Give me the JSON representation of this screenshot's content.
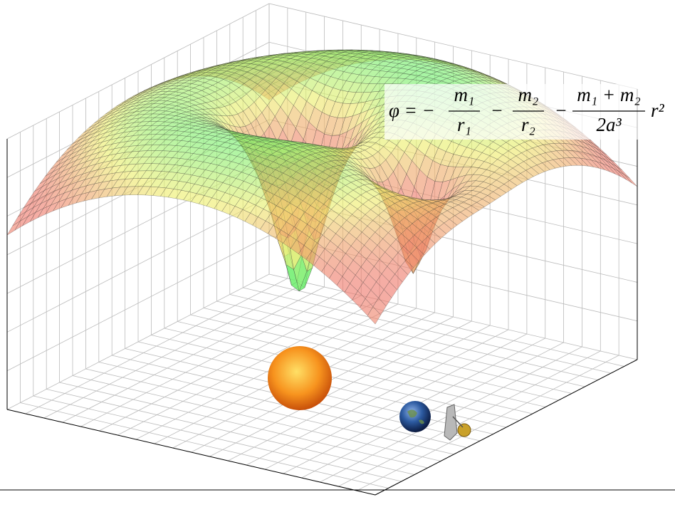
{
  "formula": {
    "lhs": "φ = −",
    "terms": [
      {
        "numerator": "m₁",
        "denominator": "r₁"
      },
      {
        "numerator": "m₂",
        "denominator": "r₂"
      },
      {
        "numerator": "m₁ + m₂",
        "denominator": "2a³"
      }
    ],
    "operators": [
      "−",
      "−"
    ],
    "tail": "r²"
  }
}
